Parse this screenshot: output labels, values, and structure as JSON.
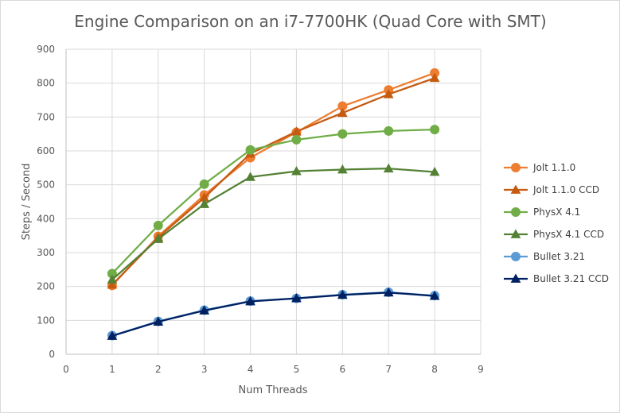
{
  "chart_data": {
    "type": "line",
    "title": "Engine Comparison on an i7-7700HK (Quad Core with SMT)",
    "xlabel": "Num Threads",
    "ylabel": "Steps / Second",
    "xlim": [
      0,
      9
    ],
    "ylim": [
      0,
      900
    ],
    "x_ticks": [
      0,
      1,
      2,
      3,
      4,
      5,
      6,
      7,
      8,
      9
    ],
    "y_ticks": [
      0,
      100,
      200,
      300,
      400,
      500,
      600,
      700,
      800,
      900
    ],
    "grid": true,
    "legend_position": "right",
    "x": [
      1,
      2,
      3,
      4,
      5,
      6,
      7,
      8
    ],
    "series": [
      {
        "name": "Jolt 1.1.0",
        "marker": "circle",
        "color": "#ED7D31",
        "values": [
          203,
          348,
          470,
          580,
          655,
          732,
          780,
          830
        ]
      },
      {
        "name": "Jolt 1.1.0 CCD",
        "marker": "triangle",
        "color": "#C55A11",
        "values": [
          205,
          345,
          462,
          592,
          657,
          712,
          767,
          815
        ]
      },
      {
        "name": "PhysX 4.1",
        "marker": "circle",
        "color": "#70AD47",
        "values": [
          238,
          380,
          502,
          603,
          633,
          650,
          659,
          663
        ]
      },
      {
        "name": "PhysX 4.1 CCD",
        "marker": "triangle",
        "color": "#548235",
        "values": [
          220,
          340,
          443,
          523,
          540,
          545,
          548,
          538
        ]
      },
      {
        "name": "Bullet 3.21",
        "marker": "circle",
        "color": "#5B9BD5",
        "values": [
          55,
          97,
          130,
          157,
          165,
          176,
          183,
          173
        ]
      },
      {
        "name": "Bullet 3.21 CCD",
        "marker": "triangle",
        "color": "#002060",
        "values": [
          54,
          96,
          129,
          156,
          165,
          175,
          182,
          172
        ]
      }
    ]
  }
}
